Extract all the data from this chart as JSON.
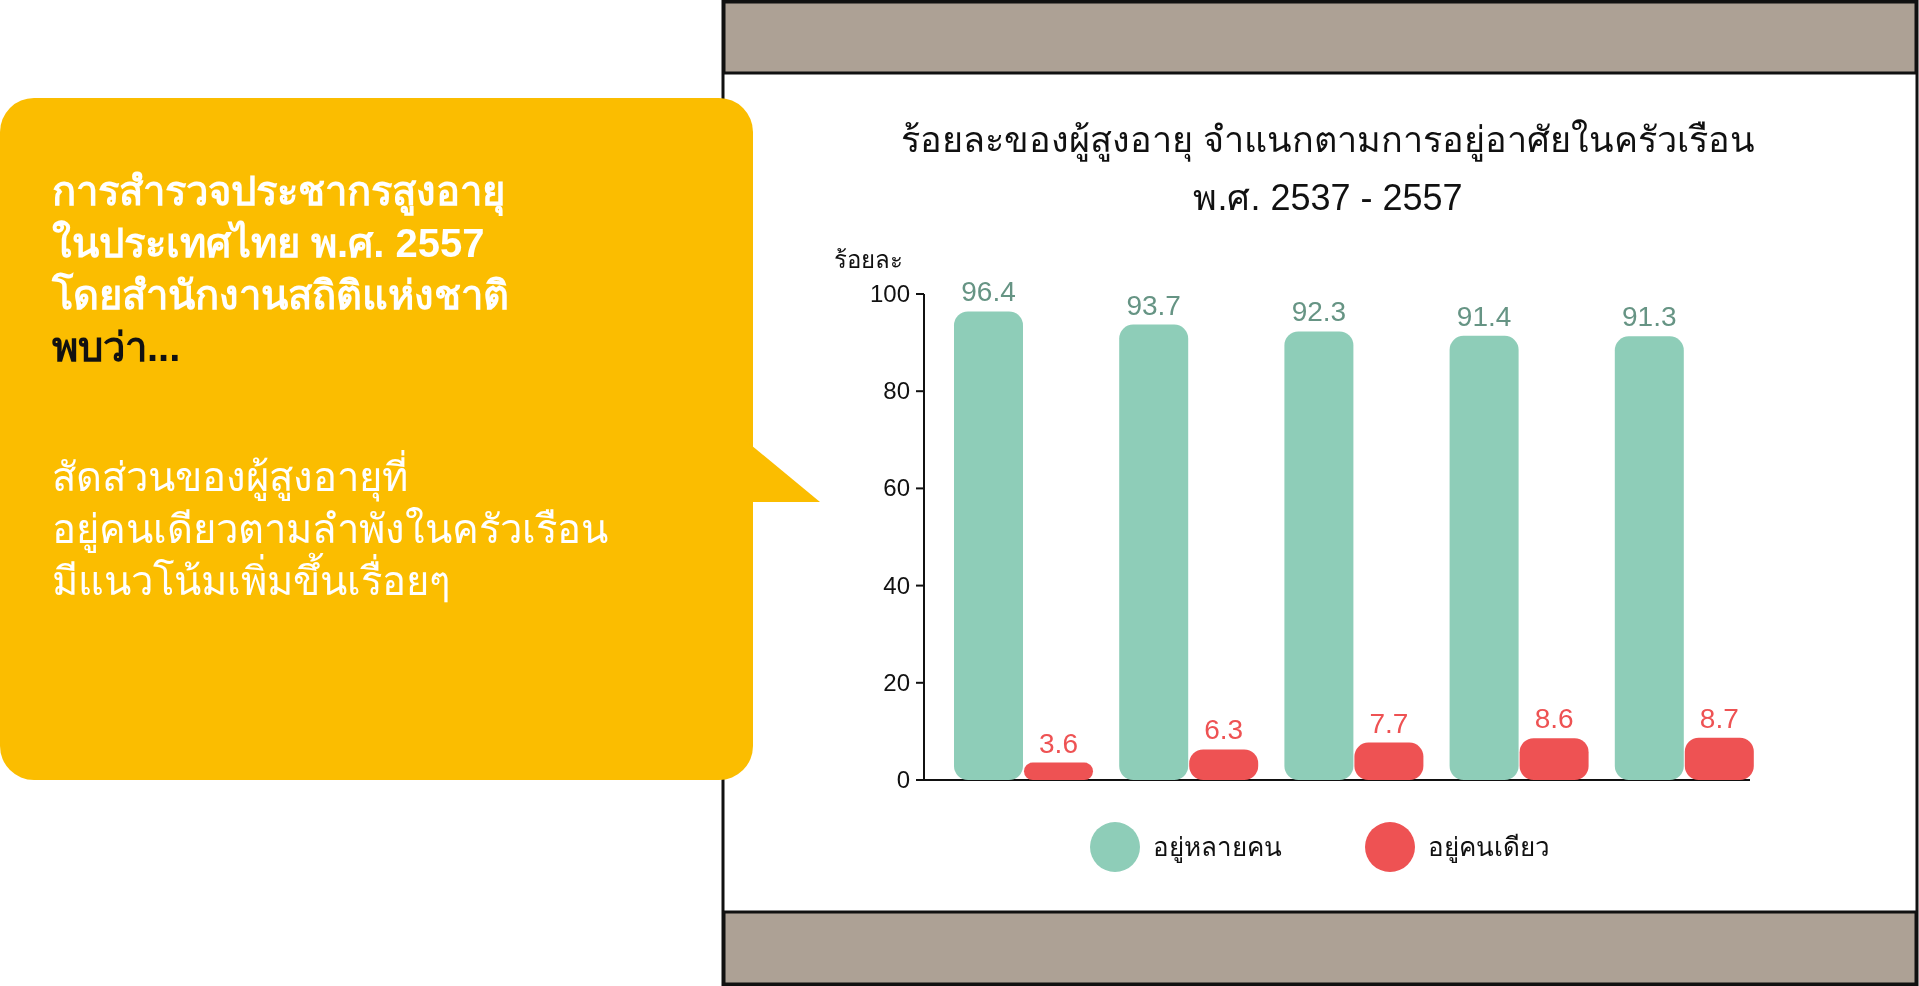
{
  "chart_data": {
    "type": "bar",
    "title": "ร้อยละของผู้สูงอายุ จำแนกตามการอยู่อาศัยในครัวเรือน\nพ.ศ. 2537 - 2557",
    "ylabel": "ร้อยละ",
    "categories": [
      null,
      null,
      null,
      null,
      null
    ],
    "series": [
      {
        "name": "อยู่หลายคน",
        "color": "#8ecdb8",
        "values": [
          96.4,
          93.7,
          92.3,
          91.4,
          91.3
        ]
      },
      {
        "name": "อยู่คนเดียว",
        "color": "#ee5253",
        "values": [
          3.6,
          6.3,
          7.7,
          8.6,
          8.7
        ]
      }
    ],
    "ylim": [
      0,
      100
    ],
    "yticks": [
      0,
      20,
      40,
      60,
      80,
      100
    ],
    "data_labels": true,
    "legend": "bottom",
    "annotations": [
      "การสำรวจประชากรสูงอายุ",
      "ในประเทศไทย พ.ศ. 2557",
      "โดยสำนักงานสถิติแห่งชาติ",
      "พบว่า...",
      "สัดส่วนของผู้สูงอายุที่",
      "อยู่คนเดียวตามลำพังในครัวเรือน",
      "มีแนวโน้มเพิ่มขึ้นเรื่อยๆ"
    ]
  }
}
